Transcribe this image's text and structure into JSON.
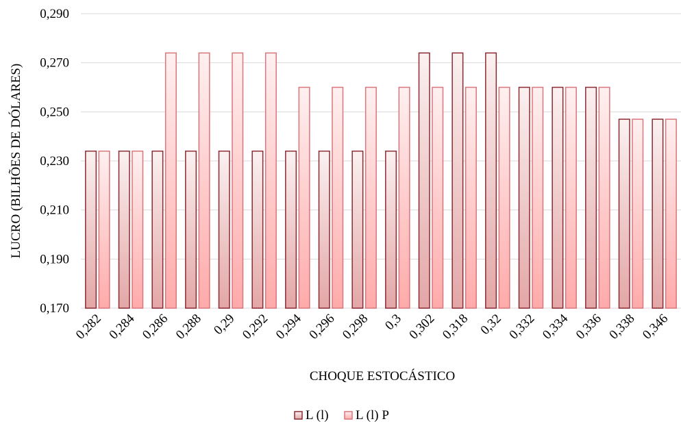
{
  "chart_data": {
    "type": "bar",
    "title": "",
    "xlabel": "CHOQUE ESTOCÁSTICO",
    "ylabel": "LUCRO (BILHÕES DE DÓLARES)",
    "ylim": [
      0.17,
      0.29
    ],
    "yticks": [
      "0,170",
      "0,190",
      "0,210",
      "0,230",
      "0,250",
      "0,270",
      "0,290"
    ],
    "ytick_values": [
      0.17,
      0.19,
      0.21,
      0.23,
      0.25,
      0.27,
      0.29
    ],
    "grid": true,
    "legend_position": "bottom",
    "categories": [
      "0,282",
      "0,284",
      "0,286",
      "0,288",
      "0,29",
      "0,292",
      "0,294",
      "0,296",
      "0,298",
      "0,3",
      "0,302",
      "0,318",
      "0,32",
      "0,332",
      "0,334",
      "0,336",
      "0,338",
      "0,346"
    ],
    "series": [
      {
        "name": "L (l)",
        "values": [
          0.234,
          0.234,
          0.234,
          0.234,
          0.234,
          0.234,
          0.234,
          0.234,
          0.234,
          0.234,
          0.274,
          0.274,
          0.274,
          0.26,
          0.26,
          0.26,
          0.247,
          0.247
        ],
        "stroke": "#8b2a33",
        "fill_top": "#fbf1f1",
        "fill_bottom": "#e3a6a6"
      },
      {
        "name": "L (l) P",
        "values": [
          0.234,
          0.234,
          0.274,
          0.274,
          0.274,
          0.274,
          0.26,
          0.26,
          0.26,
          0.26,
          0.26,
          0.26,
          0.26,
          0.26,
          0.26,
          0.26,
          0.247,
          0.247
        ],
        "stroke": "#d9767c",
        "fill_top": "#fff0f0",
        "fill_bottom": "#ffaaaa"
      }
    ]
  }
}
